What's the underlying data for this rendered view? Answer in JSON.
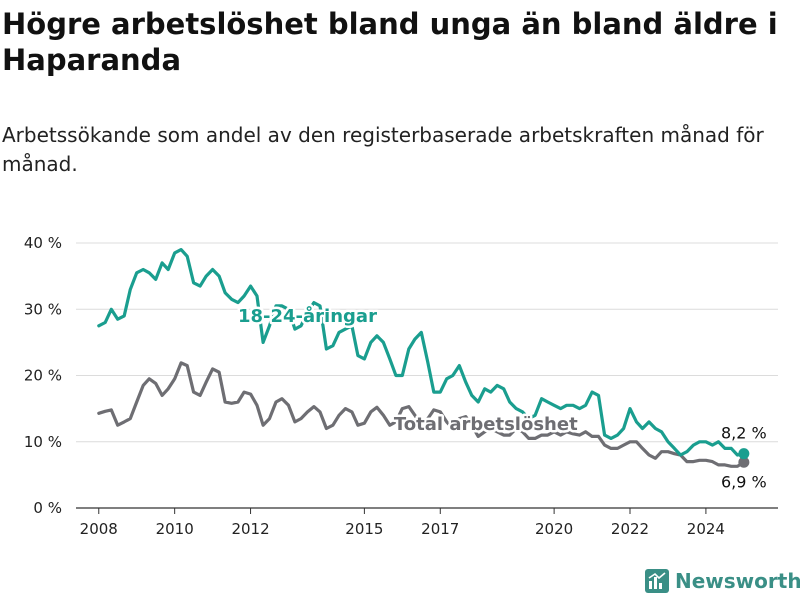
{
  "title": "Högre arbetslöshet bland unga än bland äldre i Haparanda",
  "subtitle": "Arbetssökande som andel av den registerbaserade arbetskraften månad för månad.",
  "brand": {
    "name": "Newsworthy",
    "icon": "newsworthy-logo-icon",
    "color": "#3a8f86"
  },
  "chart_data": {
    "type": "line",
    "ylim": [
      0,
      40
    ],
    "y_ticks": [
      0,
      10,
      20,
      30,
      40
    ],
    "y_tick_labels": [
      "0 %",
      "10 %",
      "20 %",
      "30 %",
      "40 %"
    ],
    "xlim": [
      2007.4,
      2025.9
    ],
    "x_ticks": [
      2008,
      2010,
      2012,
      2015,
      2017,
      2020,
      2022,
      2024
    ],
    "x_tick_labels": [
      "2008",
      "2010",
      "2012",
      "2015",
      "2017",
      "2020",
      "2022",
      "2024"
    ],
    "grid": true,
    "series": [
      {
        "name": "Total arbetslöshet",
        "color": "#6e6e73",
        "label_position": [
          2018.2,
          12.7
        ],
        "end_label": "6,9 %",
        "points": [
          [
            2008.0,
            14.3
          ],
          [
            2008.17,
            14.6
          ],
          [
            2008.33,
            14.8
          ],
          [
            2008.5,
            12.5
          ],
          [
            2008.67,
            13.0
          ],
          [
            2008.83,
            13.5
          ],
          [
            2009.0,
            16.0
          ],
          [
            2009.17,
            18.5
          ],
          [
            2009.33,
            19.5
          ],
          [
            2009.5,
            18.8
          ],
          [
            2009.67,
            17.0
          ],
          [
            2009.83,
            18.0
          ],
          [
            2010.0,
            19.5
          ],
          [
            2010.17,
            21.9
          ],
          [
            2010.33,
            21.5
          ],
          [
            2010.5,
            17.5
          ],
          [
            2010.67,
            17.0
          ],
          [
            2010.83,
            19.0
          ],
          [
            2011.0,
            21.0
          ],
          [
            2011.17,
            20.5
          ],
          [
            2011.33,
            16.0
          ],
          [
            2011.5,
            15.8
          ],
          [
            2011.67,
            16.0
          ],
          [
            2011.83,
            17.5
          ],
          [
            2012.0,
            17.2
          ],
          [
            2012.17,
            15.5
          ],
          [
            2012.33,
            12.5
          ],
          [
            2012.5,
            13.5
          ],
          [
            2012.67,
            16.0
          ],
          [
            2012.83,
            16.5
          ],
          [
            2013.0,
            15.5
          ],
          [
            2013.17,
            13.0
          ],
          [
            2013.33,
            13.5
          ],
          [
            2013.5,
            14.5
          ],
          [
            2013.67,
            15.3
          ],
          [
            2013.83,
            14.5
          ],
          [
            2014.0,
            12.0
          ],
          [
            2014.17,
            12.5
          ],
          [
            2014.33,
            14.0
          ],
          [
            2014.5,
            15.0
          ],
          [
            2014.67,
            14.5
          ],
          [
            2014.83,
            12.5
          ],
          [
            2015.0,
            12.8
          ],
          [
            2015.17,
            14.5
          ],
          [
            2015.33,
            15.2
          ],
          [
            2015.5,
            14.0
          ],
          [
            2015.67,
            12.5
          ],
          [
            2015.83,
            13.0
          ],
          [
            2016.0,
            15.0
          ],
          [
            2016.17,
            15.3
          ],
          [
            2016.33,
            14.0
          ],
          [
            2016.5,
            12.5
          ],
          [
            2016.67,
            13.5
          ],
          [
            2016.83,
            14.8
          ],
          [
            2017.0,
            14.5
          ],
          [
            2017.17,
            13.0
          ],
          [
            2017.33,
            12.0
          ],
          [
            2017.5,
            13.5
          ],
          [
            2017.67,
            13.8
          ],
          [
            2017.83,
            12.5
          ],
          [
            2018.0,
            10.8
          ],
          [
            2018.17,
            11.5
          ],
          [
            2018.33,
            12.0
          ],
          [
            2018.5,
            11.5
          ],
          [
            2018.67,
            11.0
          ],
          [
            2018.83,
            11.0
          ],
          [
            2019.0,
            12.0
          ],
          [
            2019.17,
            11.5
          ],
          [
            2019.33,
            10.5
          ],
          [
            2019.5,
            10.5
          ],
          [
            2019.67,
            11.0
          ],
          [
            2019.83,
            11.0
          ],
          [
            2020.0,
            11.5
          ],
          [
            2020.17,
            11.0
          ],
          [
            2020.33,
            11.5
          ],
          [
            2020.5,
            11.2
          ],
          [
            2020.67,
            11.0
          ],
          [
            2020.83,
            11.5
          ],
          [
            2021.0,
            10.8
          ],
          [
            2021.17,
            10.8
          ],
          [
            2021.33,
            9.5
          ],
          [
            2021.5,
            9.0
          ],
          [
            2021.67,
            9.0
          ],
          [
            2021.83,
            9.5
          ],
          [
            2022.0,
            10.0
          ],
          [
            2022.17,
            10.0
          ],
          [
            2022.33,
            9.0
          ],
          [
            2022.5,
            8.0
          ],
          [
            2022.67,
            7.5
          ],
          [
            2022.83,
            8.5
          ],
          [
            2023.0,
            8.5
          ],
          [
            2023.17,
            8.2
          ],
          [
            2023.33,
            8.0
          ],
          [
            2023.5,
            7.0
          ],
          [
            2023.67,
            7.0
          ],
          [
            2023.83,
            7.2
          ],
          [
            2024.0,
            7.2
          ],
          [
            2024.17,
            7.0
          ],
          [
            2024.33,
            6.5
          ],
          [
            2024.5,
            6.5
          ],
          [
            2024.67,
            6.3
          ],
          [
            2024.83,
            6.3
          ],
          [
            2025.0,
            6.9
          ]
        ]
      },
      {
        "name": "18-24-åringar",
        "color": "#1a9e8f",
        "label_position": [
          2013.5,
          29.0
        ],
        "end_label": "8,2 %",
        "points": [
          [
            2008.0,
            27.5
          ],
          [
            2008.17,
            28.0
          ],
          [
            2008.33,
            30.0
          ],
          [
            2008.5,
            28.5
          ],
          [
            2008.67,
            29.0
          ],
          [
            2008.83,
            33.0
          ],
          [
            2009.0,
            35.5
          ],
          [
            2009.17,
            36.0
          ],
          [
            2009.33,
            35.5
          ],
          [
            2009.5,
            34.5
          ],
          [
            2009.67,
            37.0
          ],
          [
            2009.83,
            36.0
          ],
          [
            2010.0,
            38.5
          ],
          [
            2010.17,
            39.0
          ],
          [
            2010.33,
            38.0
          ],
          [
            2010.5,
            34.0
          ],
          [
            2010.67,
            33.5
          ],
          [
            2010.83,
            35.0
          ],
          [
            2011.0,
            36.0
          ],
          [
            2011.17,
            35.0
          ],
          [
            2011.33,
            32.5
          ],
          [
            2011.5,
            31.5
          ],
          [
            2011.67,
            31.0
          ],
          [
            2011.83,
            32.0
          ],
          [
            2012.0,
            33.5
          ],
          [
            2012.17,
            32.0
          ],
          [
            2012.33,
            25.0
          ],
          [
            2012.5,
            27.5
          ],
          [
            2012.67,
            30.5
          ],
          [
            2012.83,
            30.5
          ],
          [
            2013.0,
            30.0
          ],
          [
            2013.17,
            27.0
          ],
          [
            2013.33,
            27.5
          ],
          [
            2013.5,
            29.5
          ],
          [
            2013.67,
            31.0
          ],
          [
            2013.83,
            30.5
          ],
          [
            2014.0,
            24.0
          ],
          [
            2014.17,
            24.5
          ],
          [
            2014.33,
            26.5
          ],
          [
            2014.5,
            27.0
          ],
          [
            2014.67,
            27.5
          ],
          [
            2014.83,
            23.0
          ],
          [
            2015.0,
            22.5
          ],
          [
            2015.17,
            25.0
          ],
          [
            2015.33,
            26.0
          ],
          [
            2015.5,
            25.0
          ],
          [
            2015.67,
            22.5
          ],
          [
            2015.83,
            20.0
          ],
          [
            2016.0,
            20.0
          ],
          [
            2016.17,
            24.0
          ],
          [
            2016.33,
            25.5
          ],
          [
            2016.5,
            26.5
          ],
          [
            2016.67,
            22.0
          ],
          [
            2016.83,
            17.5
          ],
          [
            2017.0,
            17.5
          ],
          [
            2017.17,
            19.5
          ],
          [
            2017.33,
            20.0
          ],
          [
            2017.5,
            21.5
          ],
          [
            2017.67,
            19.0
          ],
          [
            2017.83,
            17.0
          ],
          [
            2018.0,
            16.0
          ],
          [
            2018.17,
            18.0
          ],
          [
            2018.33,
            17.5
          ],
          [
            2018.5,
            18.5
          ],
          [
            2018.67,
            18.0
          ],
          [
            2018.83,
            16.0
          ],
          [
            2019.0,
            15.0
          ],
          [
            2019.17,
            14.5
          ],
          [
            2019.33,
            13.5
          ],
          [
            2019.5,
            14.0
          ],
          [
            2019.67,
            16.5
          ],
          [
            2019.83,
            16.0
          ],
          [
            2020.0,
            15.5
          ],
          [
            2020.17,
            15.0
          ],
          [
            2020.33,
            15.5
          ],
          [
            2020.5,
            15.5
          ],
          [
            2020.67,
            15.0
          ],
          [
            2020.83,
            15.5
          ],
          [
            2021.0,
            17.5
          ],
          [
            2021.17,
            17.0
          ],
          [
            2021.33,
            11.0
          ],
          [
            2021.5,
            10.5
          ],
          [
            2021.67,
            11.0
          ],
          [
            2021.83,
            12.0
          ],
          [
            2022.0,
            15.0
          ],
          [
            2022.17,
            13.0
          ],
          [
            2022.33,
            12.0
          ],
          [
            2022.5,
            13.0
          ],
          [
            2022.67,
            12.0
          ],
          [
            2022.83,
            11.5
          ],
          [
            2023.0,
            10.0
          ],
          [
            2023.17,
            9.0
          ],
          [
            2023.33,
            8.0
          ],
          [
            2023.5,
            8.5
          ],
          [
            2023.67,
            9.5
          ],
          [
            2023.83,
            10.0
          ],
          [
            2024.0,
            10.0
          ],
          [
            2024.17,
            9.5
          ],
          [
            2024.33,
            10.0
          ],
          [
            2024.5,
            9.0
          ],
          [
            2024.67,
            9.0
          ],
          [
            2024.83,
            8.0
          ],
          [
            2025.0,
            8.2
          ]
        ]
      }
    ]
  }
}
